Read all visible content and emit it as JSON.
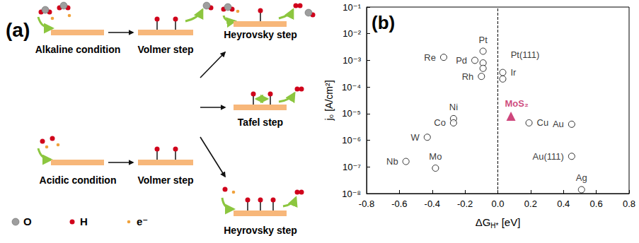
{
  "diagram": {
    "panel_label": "(a)",
    "start_states": [
      {
        "label": "Alkaline condition"
      },
      {
        "label": "Acidic condition"
      }
    ],
    "first_steps": [
      "Volmer step",
      "Volmer step"
    ],
    "second_steps": [
      "Heyrovsky step",
      "Tafel step",
      "Heyrovsky step"
    ],
    "legend": [
      {
        "symbol": "O",
        "color": "#9e9e9e"
      },
      {
        "symbol": "H",
        "color": "#d0021b"
      },
      {
        "symbol": "e⁻",
        "color": "#f0a23c"
      }
    ]
  },
  "chart_data": {
    "type": "scatter",
    "panel_label": "(b)",
    "x_label": {
      "main": "ΔG",
      "sub": "H*",
      "unit": "[eV]"
    },
    "y_label": "j₀ [A/cm²]",
    "log": "y",
    "grid": false,
    "xlim": [
      -0.8,
      0.8
    ],
    "xticks": [
      -0.8,
      -0.6,
      -0.4,
      -0.2,
      {
        "value": 0,
        "label": "0.0"
      },
      0.2,
      0.4,
      0.6,
      0.8
    ],
    "ylim": [
      1e-08,
      0.1
    ],
    "yticks": [
      {
        "value": 1e-08,
        "label": "10⁻⁸"
      },
      {
        "value": 1e-07,
        "label": "10⁻⁷"
      },
      {
        "value": 1e-06,
        "label": "10⁻⁶"
      },
      {
        "value": 1e-05,
        "label": "10⁻⁵"
      },
      {
        "value": 0.0001,
        "label": "10⁻⁴"
      },
      {
        "value": 0.001,
        "label": "10⁻³"
      },
      {
        "value": 0.01,
        "label": "10⁻²"
      },
      {
        "value": 0.1,
        "label": "10⁻¹"
      }
    ],
    "reference_x": 0,
    "series": [
      {
        "marker": "open_circle",
        "color": "#000000",
        "x": [
          -0.33,
          -0.09,
          -0.14,
          -0.09,
          -0.09,
          -0.1,
          0.03,
          0.03,
          -0.27,
          -0.27,
          -0.43,
          -0.56,
          -0.38,
          0.19,
          0.45,
          0.45,
          0.51
        ],
        "values": [
          0.0013,
          0.0022,
          0.001,
          0.0008,
          0.0005,
          0.00025,
          0.00035,
          0.0002,
          6.5e-06,
          4.5e-06,
          1.3e-06,
          1.6e-07,
          9e-08,
          4.5e-06,
          4e-06,
          2.5e-07,
          1.4e-08
        ],
        "labels": [
          "Re",
          "Pt",
          "Pd",
          "Pt(111)",
          null,
          "Rh",
          "Ir",
          null,
          "Ni",
          "Co",
          "W",
          "Nb",
          "Mo",
          "Cu",
          "Au",
          "Au(111)",
          "Ag"
        ]
      },
      {
        "marker": "triangle",
        "color": "#c2185b",
        "x": [
          0.08
        ],
        "values": [
          8e-06
        ],
        "labels": [
          "MoS₂"
        ]
      }
    ]
  }
}
